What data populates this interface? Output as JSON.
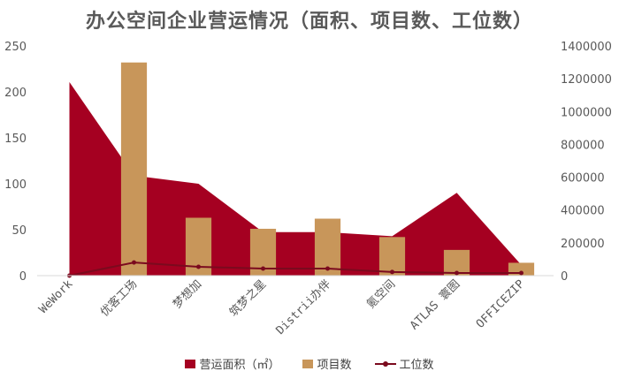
{
  "chart_data": {
    "type": "bar",
    "title": "办公空间企业营运情况（面积、项目数、工位数）",
    "categories": [
      "WeWork",
      "优客工场",
      "梦想加",
      "筑梦之星",
      "Distrii办伴",
      "氪空间",
      "ATLAS 寰图",
      "OFFICEZIP"
    ],
    "series": [
      {
        "name": "营运面积（㎡）",
        "type": "area",
        "axis": "right",
        "color": "#A50021",
        "values": [
          1180000,
          610000,
          560000,
          265000,
          265000,
          240000,
          505000,
          65000
        ]
      },
      {
        "name": "项目数",
        "type": "bar",
        "axis": "left",
        "color": "#C8965A",
        "values": [
          0,
          232,
          63,
          51,
          62,
          42,
          28,
          14
        ]
      },
      {
        "name": "工位数",
        "type": "line",
        "axis": "right",
        "color": "#7B0A1E",
        "values": [
          0,
          80000,
          54000,
          43000,
          43000,
          22000,
          16000,
          16000
        ]
      }
    ],
    "left_axis": {
      "ticks": [
        "0",
        "50",
        "100",
        "150",
        "200",
        "250"
      ],
      "ylim": [
        0,
        250
      ]
    },
    "right_axis": {
      "ticks": [
        "0",
        "200000",
        "400000",
        "600000",
        "800000",
        "1000000",
        "1200000",
        "1400000"
      ],
      "ylim": [
        0,
        1400000
      ]
    },
    "xlabel": "",
    "ylabel": "",
    "grid": false,
    "legend_position": "bottom"
  },
  "legend": [
    {
      "label": "营运面积（㎡）"
    },
    {
      "label": "项目数"
    },
    {
      "label": "工位数"
    }
  ]
}
